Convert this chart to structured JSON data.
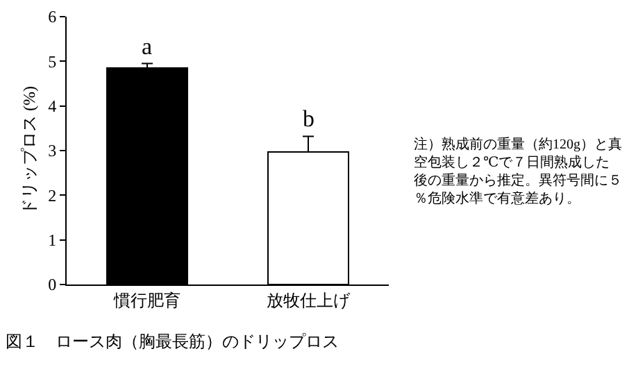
{
  "chart_data": {
    "type": "bar",
    "title": "図１　ロース肉（胸最長筋）のドリップロス",
    "ylabel": "ドリップロス (%)",
    "categories": [
      "慣行肥育",
      "放牧仕上げ"
    ],
    "values": [
      4.85,
      2.97
    ],
    "colors": [
      "#000000",
      "#ffffff"
    ],
    "errors": [
      [
        4.85,
        4.95
      ],
      [
        2.97,
        3.32
      ]
    ],
    "ylim": [
      0,
      6
    ],
    "yticks": [
      0,
      1,
      2,
      3,
      4,
      5,
      6
    ],
    "grid": false,
    "annotations": [
      {
        "text": "a",
        "x": "慣行肥育",
        "y": 4.95
      },
      {
        "text": "b",
        "x": "放牧仕上げ",
        "y": 3.32
      },
      "注）熟成前の重量（約120g）と真空包装し２℃で７日間熟成した後の重量から推定。異符号間に５％危険水準で有意差あり。"
    ]
  }
}
